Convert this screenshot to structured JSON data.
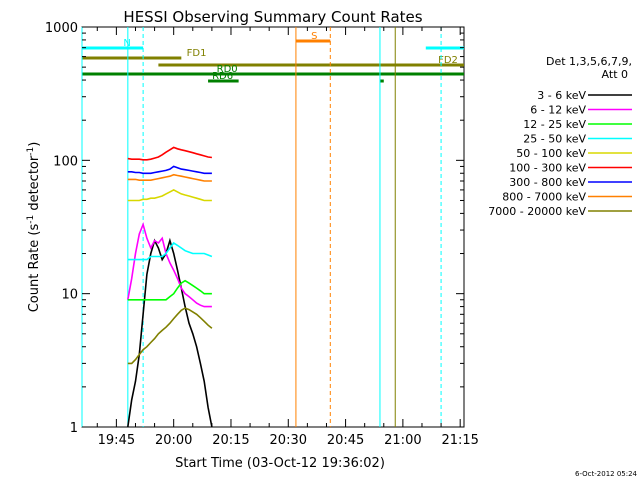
{
  "chart_data": {
    "type": "line",
    "title": "HESSI Observing Summary Count Rates",
    "xlabel": "Start Time (03-Oct-12 19:36:02)",
    "ylabel_main": "Count Rate (s",
    "ylabel_sup1": "-1",
    "ylabel_mid": " detector",
    "ylabel_sup2": "-1",
    "ylabel_end": ")",
    "yscale": "log",
    "ylim": [
      1,
      1000
    ],
    "xlim_minutes": [
      0,
      100
    ],
    "x_tick_labels": [
      "19:45",
      "20:00",
      "20:15",
      "20:30",
      "20:45",
      "21:00",
      "21:15"
    ],
    "x_tick_minutes": [
      9,
      24,
      39,
      54,
      69,
      84,
      99
    ],
    "y_tick_labels": [
      "1",
      "10",
      "100",
      "1000"
    ],
    "y_tick_values": [
      1,
      10,
      100,
      1000
    ],
    "legend_header_1": "Det 1,3,5,6,7,9,",
    "legend_header_2": "Att 0",
    "legend_position": "right",
    "timestamp": "6-Oct-2012 05:24",
    "gaps_minutes": [
      [
        34,
        38
      ],
      [
        56,
        64
      ],
      [
        72,
        76
      ]
    ],
    "series": [
      {
        "name": "3 - 6 keV",
        "color": "#000000",
        "points": [
          [
            12,
            1
          ],
          [
            13,
            1.6
          ],
          [
            14,
            2.2
          ],
          [
            15,
            3.5
          ],
          [
            16,
            7
          ],
          [
            17,
            14
          ],
          [
            18,
            20
          ],
          [
            19,
            25
          ],
          [
            20,
            22
          ],
          [
            21,
            18
          ],
          [
            22,
            20
          ],
          [
            23,
            25
          ],
          [
            24,
            20
          ],
          [
            25,
            15
          ],
          [
            26,
            11
          ],
          [
            27,
            8
          ],
          [
            28,
            6
          ],
          [
            29,
            5
          ],
          [
            30,
            4
          ],
          [
            31,
            3
          ],
          [
            32,
            2.2
          ],
          [
            33,
            1.4
          ],
          [
            34,
            1
          ]
        ]
      },
      {
        "name": "6 - 12 keV",
        "color": "#ff00ff",
        "points": [
          [
            12,
            9
          ],
          [
            13,
            13
          ],
          [
            14,
            20
          ],
          [
            15,
            28
          ],
          [
            16,
            33
          ],
          [
            17,
            26
          ],
          [
            18,
            22
          ],
          [
            19,
            25
          ],
          [
            20,
            24
          ],
          [
            21,
            26
          ],
          [
            22,
            20
          ],
          [
            23,
            17
          ],
          [
            24,
            15
          ],
          [
            25,
            13
          ],
          [
            26,
            11
          ],
          [
            27,
            10
          ],
          [
            28,
            9.5
          ],
          [
            29,
            9
          ],
          [
            30,
            8.5
          ],
          [
            31,
            8.2
          ],
          [
            32,
            8
          ],
          [
            33,
            8
          ],
          [
            34,
            8
          ]
        ]
      },
      {
        "name": "12 - 25 keV",
        "color": "#00ff00",
        "points": [
          [
            12,
            9
          ],
          [
            13,
            9
          ],
          [
            14,
            9
          ],
          [
            15,
            9
          ],
          [
            16,
            9
          ],
          [
            17,
            9
          ],
          [
            18,
            9
          ],
          [
            19,
            9
          ],
          [
            20,
            9
          ],
          [
            21,
            9
          ],
          [
            22,
            9
          ],
          [
            23,
            9.5
          ],
          [
            24,
            10
          ],
          [
            25,
            11
          ],
          [
            26,
            12
          ],
          [
            27,
            12.5
          ],
          [
            28,
            12
          ],
          [
            29,
            11.5
          ],
          [
            30,
            11
          ],
          [
            31,
            10.5
          ],
          [
            32,
            10
          ],
          [
            33,
            10
          ],
          [
            34,
            10
          ]
        ]
      },
      {
        "name": "25 - 50 keV",
        "color": "#00ffff",
        "points": [
          [
            12,
            18
          ],
          [
            13,
            18
          ],
          [
            14,
            18
          ],
          [
            15,
            18
          ],
          [
            16,
            18
          ],
          [
            17,
            18
          ],
          [
            18,
            19
          ],
          [
            19,
            19
          ],
          [
            20,
            19
          ],
          [
            21,
            19
          ],
          [
            22,
            20
          ],
          [
            23,
            22
          ],
          [
            24,
            24
          ],
          [
            25,
            23
          ],
          [
            26,
            22
          ],
          [
            27,
            21
          ],
          [
            28,
            20.5
          ],
          [
            29,
            20
          ],
          [
            30,
            20
          ],
          [
            31,
            20
          ],
          [
            32,
            20
          ],
          [
            33,
            19.5
          ],
          [
            34,
            19
          ]
        ]
      },
      {
        "name": "50 - 100 keV",
        "color": "#d8d800",
        "points": [
          [
            12,
            50
          ],
          [
            13,
            50
          ],
          [
            14,
            50
          ],
          [
            15,
            50
          ],
          [
            16,
            51
          ],
          [
            17,
            51
          ],
          [
            18,
            52
          ],
          [
            19,
            52
          ],
          [
            20,
            53
          ],
          [
            21,
            54
          ],
          [
            22,
            56
          ],
          [
            23,
            58
          ],
          [
            24,
            60
          ],
          [
            25,
            58
          ],
          [
            26,
            56
          ],
          [
            27,
            55
          ],
          [
            28,
            54
          ],
          [
            29,
            53
          ],
          [
            30,
            52
          ],
          [
            31,
            51
          ],
          [
            32,
            50
          ],
          [
            33,
            50
          ],
          [
            34,
            50
          ]
        ]
      },
      {
        "name": "100 - 300 keV",
        "color": "#ff0000",
        "points": [
          [
            12,
            103
          ],
          [
            13,
            102
          ],
          [
            14,
            102
          ],
          [
            15,
            102
          ],
          [
            16,
            101
          ],
          [
            17,
            101
          ],
          [
            18,
            102
          ],
          [
            19,
            104
          ],
          [
            20,
            106
          ],
          [
            21,
            110
          ],
          [
            22,
            115
          ],
          [
            23,
            120
          ],
          [
            24,
            125
          ],
          [
            25,
            122
          ],
          [
            26,
            120
          ],
          [
            27,
            118
          ],
          [
            28,
            116
          ],
          [
            29,
            114
          ],
          [
            30,
            112
          ],
          [
            31,
            110
          ],
          [
            32,
            108
          ],
          [
            33,
            106
          ],
          [
            34,
            105
          ]
        ]
      },
      {
        "name": "300 - 800 keV",
        "color": "#0000ff",
        "points": [
          [
            12,
            82
          ],
          [
            13,
            82
          ],
          [
            14,
            81
          ],
          [
            15,
            81
          ],
          [
            16,
            80
          ],
          [
            17,
            80
          ],
          [
            18,
            80
          ],
          [
            19,
            81
          ],
          [
            20,
            82
          ],
          [
            21,
            83
          ],
          [
            22,
            84
          ],
          [
            23,
            86
          ],
          [
            24,
            90
          ],
          [
            25,
            88
          ],
          [
            26,
            86
          ],
          [
            27,
            85
          ],
          [
            28,
            84
          ],
          [
            29,
            83
          ],
          [
            30,
            82
          ],
          [
            31,
            81
          ],
          [
            32,
            80
          ],
          [
            33,
            80
          ],
          [
            34,
            80
          ]
        ]
      },
      {
        "name": "800 - 7000 keV",
        "color": "#ff8000",
        "points": [
          [
            12,
            72
          ],
          [
            13,
            72
          ],
          [
            14,
            72
          ],
          [
            15,
            71
          ],
          [
            16,
            71
          ],
          [
            17,
            71
          ],
          [
            18,
            71
          ],
          [
            19,
            72
          ],
          [
            20,
            73
          ],
          [
            21,
            74
          ],
          [
            22,
            75
          ],
          [
            23,
            76
          ],
          [
            24,
            78
          ],
          [
            25,
            77
          ],
          [
            26,
            76
          ],
          [
            27,
            75
          ],
          [
            28,
            74
          ],
          [
            29,
            73
          ],
          [
            30,
            72
          ],
          [
            31,
            71
          ],
          [
            32,
            70
          ],
          [
            33,
            70
          ],
          [
            34,
            70
          ]
        ]
      },
      {
        "name": "7000 - 20000 keV",
        "color": "#808000",
        "points": [
          [
            12,
            3
          ],
          [
            13,
            3
          ],
          [
            14,
            3.2
          ],
          [
            15,
            3.5
          ],
          [
            16,
            3.8
          ],
          [
            17,
            4
          ],
          [
            18,
            4.3
          ],
          [
            19,
            4.6
          ],
          [
            20,
            5
          ],
          [
            21,
            5.3
          ],
          [
            22,
            5.6
          ],
          [
            23,
            6
          ],
          [
            24,
            6.5
          ],
          [
            25,
            7
          ],
          [
            26,
            7.5
          ],
          [
            27,
            7.8
          ],
          [
            28,
            7.6
          ],
          [
            29,
            7.3
          ],
          [
            30,
            7
          ],
          [
            31,
            6.6
          ],
          [
            32,
            6.2
          ],
          [
            33,
            5.8
          ],
          [
            34,
            5.5
          ]
        ]
      }
    ],
    "bars": [
      {
        "label": "N",
        "color": "#00ffff",
        "row": 1,
        "segments": [
          [
            0,
            16
          ],
          [
            90,
            100
          ]
        ]
      },
      {
        "label": "S",
        "color": "#ff8000",
        "row": 0,
        "segments": [
          [
            56,
            65
          ]
        ]
      },
      {
        "label": "FD1",
        "color": "#808000",
        "row": 2,
        "segments": [
          [
            0,
            26
          ]
        ]
      },
      {
        "label": "FD2",
        "color": "#808000",
        "row": 3,
        "segments": [
          [
            20,
            100
          ]
        ]
      },
      {
        "label": "RD0",
        "color": "#008000",
        "row": 4,
        "segments": [
          [
            0,
            100
          ]
        ]
      },
      {
        "label": "RD6",
        "color": "#008000",
        "row": 5,
        "segments": [
          [
            33,
            41
          ],
          [
            78,
            79
          ]
        ]
      }
    ],
    "vlines": [
      {
        "minute": 0,
        "color": "#00ffff",
        "dashed": false
      },
      {
        "minute": 12,
        "color": "#00ffff",
        "dashed": false
      },
      {
        "minute": 16,
        "color": "#00ffff",
        "dashed": true
      },
      {
        "minute": 56,
        "color": "#ff8000",
        "dashed": false
      },
      {
        "minute": 65,
        "color": "#ff8000",
        "dashed": true
      },
      {
        "minute": 78,
        "color": "#00ffff",
        "dashed": false
      },
      {
        "minute": 82,
        "color": "#808000",
        "dashed": false
      },
      {
        "minute": 94,
        "color": "#00ffff",
        "dashed": true
      }
    ]
  }
}
